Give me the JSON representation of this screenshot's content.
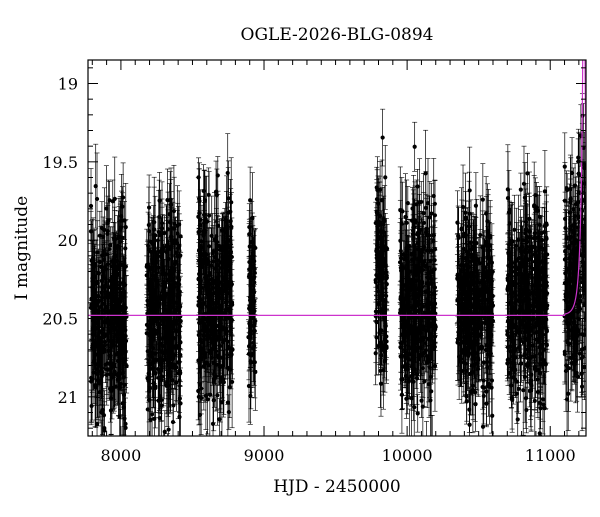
{
  "chart_data": {
    "type": "scatter",
    "title": "OGLE-2026-BLG-0894",
    "xlabel": "HJD - 2450000",
    "ylabel": "I magnitude",
    "xlim": [
      7770,
      11250
    ],
    "ylim": [
      21.25,
      18.85
    ],
    "y_inverted": true,
    "grid": false,
    "legend": "none",
    "x_ticks": [
      8000,
      9000,
      10000,
      11000
    ],
    "x_tick_labels": [
      "8000",
      "9000",
      "10000",
      "11000"
    ],
    "y_ticks": [
      19,
      19.5,
      20,
      20.5,
      21
    ],
    "y_tick_labels": [
      "19",
      "19.5",
      "20",
      "20.5",
      "21"
    ],
    "point_color": "#000000",
    "model_color": "#cc33cc",
    "baseline_mag": 20.48,
    "seasons": [
      {
        "x_start": 7790,
        "x_end": 8040,
        "y_center": 20.5,
        "y_spread": 0.75,
        "err": 0.2
      },
      {
        "x_start": 8180,
        "x_end": 8420,
        "y_center": 20.45,
        "y_spread": 0.7,
        "err": 0.2
      },
      {
        "x_start": 8540,
        "x_end": 8780,
        "y_center": 20.4,
        "y_spread": 0.75,
        "err": 0.2
      },
      {
        "x_start": 8890,
        "x_end": 8940,
        "y_center": 20.4,
        "y_spread": 0.6,
        "err": 0.2
      },
      {
        "x_start": 9780,
        "x_end": 9860,
        "y_center": 20.3,
        "y_spread": 0.7,
        "err": 0.2
      },
      {
        "x_start": 9950,
        "x_end": 10200,
        "y_center": 20.4,
        "y_spread": 0.7,
        "err": 0.2
      },
      {
        "x_start": 10350,
        "x_end": 10600,
        "y_center": 20.45,
        "y_spread": 0.65,
        "err": 0.2
      },
      {
        "x_start": 10700,
        "x_end": 10980,
        "y_center": 20.4,
        "y_spread": 0.7,
        "err": 0.2
      },
      {
        "x_start": 11100,
        "x_end": 11250,
        "y_center": 20.3,
        "y_spread": 0.8,
        "err": 0.2
      }
    ]
  }
}
